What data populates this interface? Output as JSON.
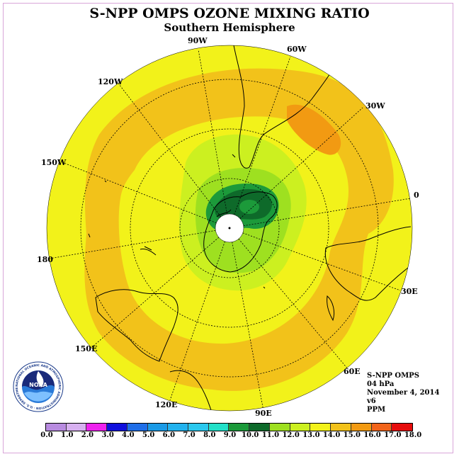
{
  "title": "S-NPP OMPS OZONE MIXING RATIO",
  "subtitle": "Southern Hemisphere",
  "longitude_labels": [
    "90W",
    "60W",
    "30W",
    "0",
    "30E",
    "60E",
    "90E",
    "120E",
    "150E",
    "180",
    "150W",
    "120W"
  ],
  "info": {
    "product": "S-NPP OMPS",
    "level": "04 hPa",
    "date": "November 4, 2014",
    "version": "v6",
    "units": "PPM"
  },
  "logo": {
    "text": "NOAA",
    "ring_text": "NATIONAL OCEANIC AND ATMOSPHERIC ADMINISTRATION · U.S. DEPARTMENT OF COMMERCE"
  },
  "color_scale": {
    "ticks": [
      "0.0",
      "1.0",
      "2.0",
      "3.0",
      "4.0",
      "5.0",
      "6.0",
      "7.0",
      "8.0",
      "9.0",
      "10.0",
      "11.0",
      "12.0",
      "13.0",
      "14.0",
      "15.0",
      "16.0",
      "17.0",
      "18.0"
    ],
    "colors": [
      "#b88be0",
      "#d7b0f0",
      "#ee22ee",
      "#1010dd",
      "#1f6ee8",
      "#1a9ae6",
      "#22b2ee",
      "#2ac8ee",
      "#22e0c8",
      "#1c9a3a",
      "#0e6a2a",
      "#9ee020",
      "#ccf020",
      "#f2f21a",
      "#f2c21a",
      "#f29a12",
      "#f2641a",
      "#e60c0c",
      "#8a5a3a"
    ]
  },
  "map_colors": {
    "yellow": "#f2f21a",
    "orange_light": "#f2c21a",
    "orange_dark": "#f29a12",
    "lime": "#ccf020",
    "green": "#9ee020",
    "dark_green": "#1c9a3a",
    "darkest_green": "#0e6a2a"
  }
}
